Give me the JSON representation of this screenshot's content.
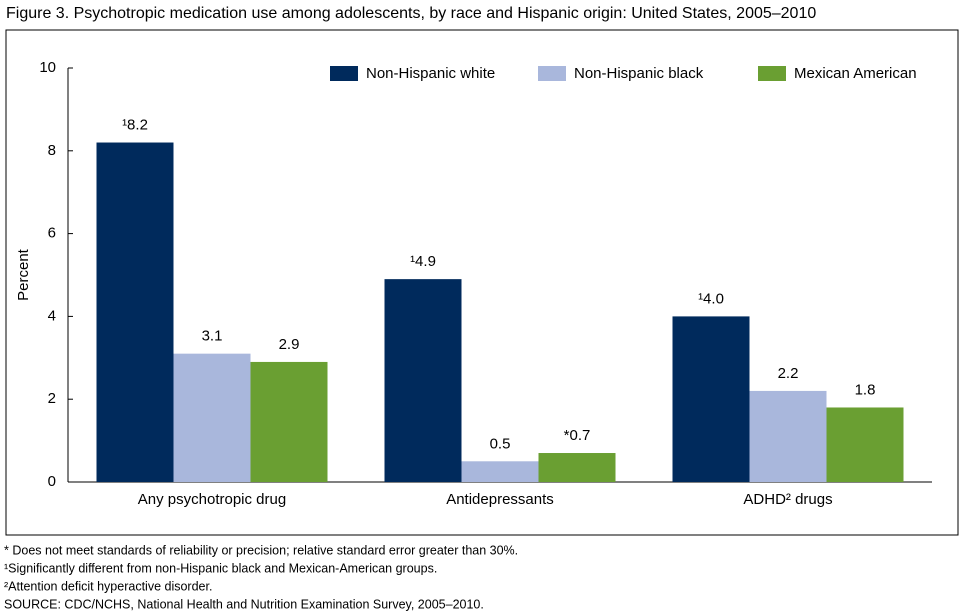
{
  "chart_data": {
    "type": "bar",
    "title": "Figure 3. Psychotropic medication use among adolescents, by race and Hispanic origin: United States, 2005–2010",
    "y_label": "Percent",
    "categories": [
      "Any psychotropic drug",
      "Antidepressants",
      "ADHD² drugs"
    ],
    "series": [
      {
        "name": "Non-Hispanic white",
        "color": "#002a5c",
        "values": [
          8.2,
          4.9,
          4.0
        ],
        "value_labels": [
          "¹8.2",
          "¹4.9",
          "¹4.0"
        ]
      },
      {
        "name": "Non-Hispanic black",
        "color": "#a9b7dc",
        "values": [
          3.1,
          0.5,
          2.2
        ],
        "value_labels": [
          "3.1",
          "0.5",
          "2.2"
        ]
      },
      {
        "name": "Mexican American",
        "color": "#6a9f32",
        "values": [
          2.9,
          0.7,
          1.8
        ],
        "value_labels": [
          "2.9",
          "*0.7",
          "1.8"
        ]
      }
    ],
    "ylim": [
      0,
      10
    ],
    "yticks": [
      0,
      2,
      4,
      6,
      8,
      10
    ],
    "grid": false,
    "legend": "top-right",
    "footnotes": [
      "* Does not meet standards of reliability or precision; relative standard error greater than 30%.",
      "¹Significantly different from non-Hispanic black and Mexican-American groups.",
      "²Attention deficit hyperactive disorder.",
      "SOURCE: CDC/NCHS, National Health and Nutrition Examination Survey, 2005–2010."
    ]
  }
}
